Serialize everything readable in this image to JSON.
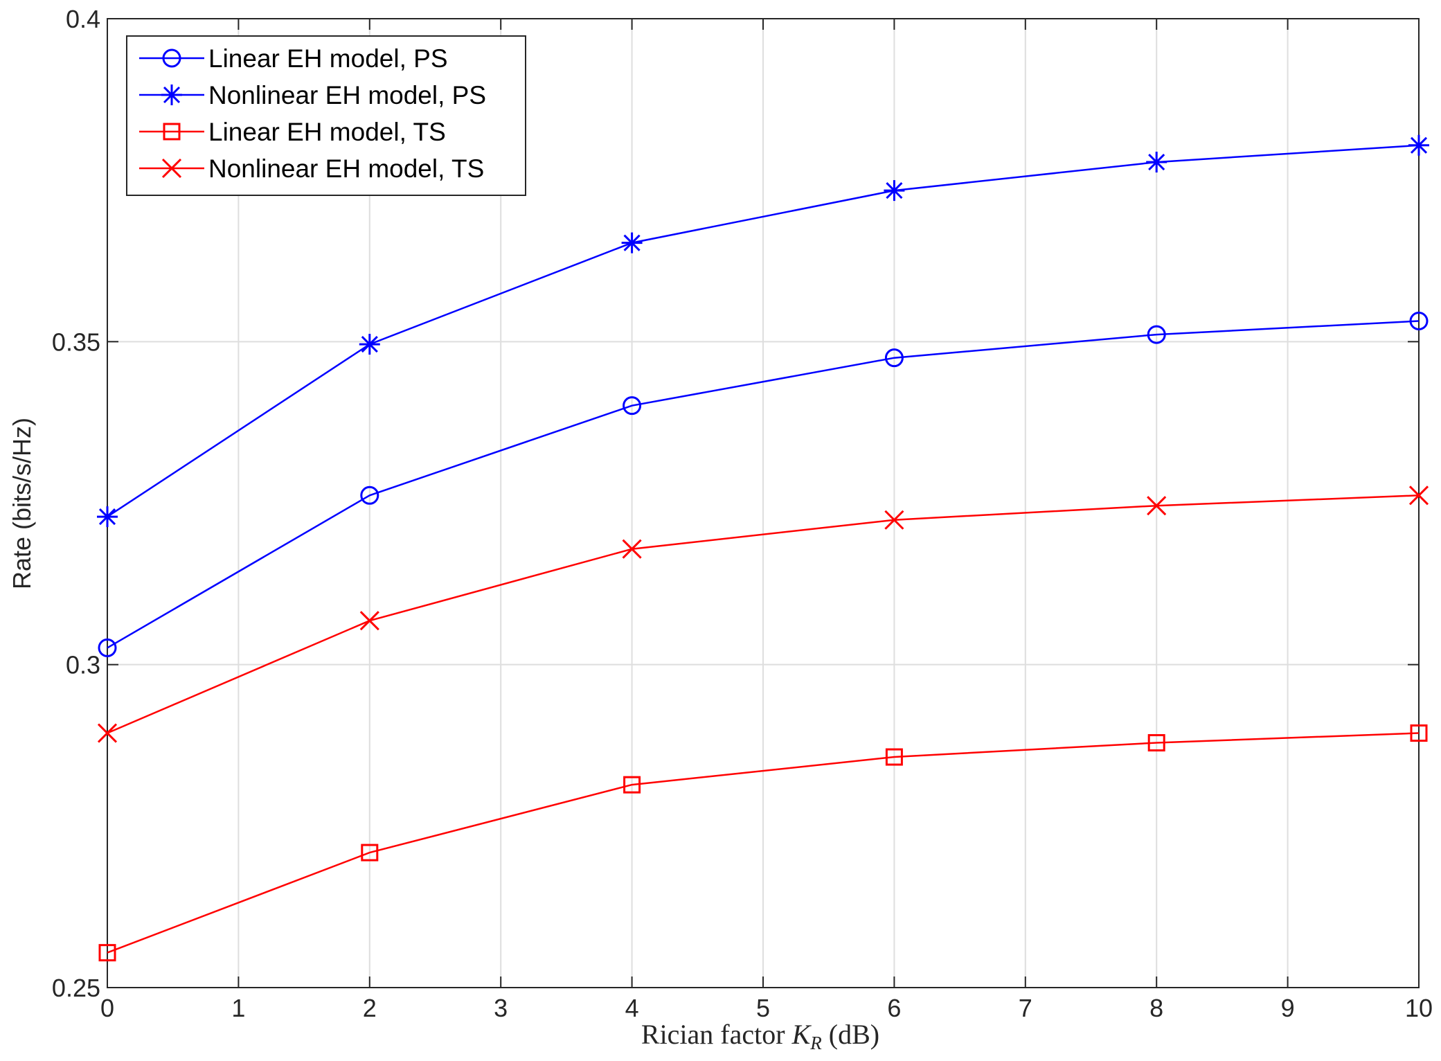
{
  "chart_data": {
    "type": "line",
    "xlabel": {
      "prefix": "Rician factor ",
      "symbol": "K",
      "subscript": "R",
      "suffix": " (dB)"
    },
    "ylabel": "Rate (bits/s/Hz)",
    "xlim": [
      0,
      10
    ],
    "ylim": [
      0.25,
      0.4
    ],
    "xticks": [
      "0",
      "1",
      "2",
      "3",
      "4",
      "5",
      "6",
      "7",
      "8",
      "9",
      "10"
    ],
    "yticks": [
      "0.25",
      "0.3",
      "0.35",
      "0.4"
    ],
    "grid": true,
    "legend_position": "top-left",
    "x": [
      0,
      2,
      4,
      6,
      8,
      10
    ],
    "series": [
      {
        "name": "Linear EH model, PS",
        "color": "#0000ff",
        "marker": "circle",
        "values": [
          0.3026,
          0.3262,
          0.3401,
          0.3475,
          0.3511,
          0.3532
        ]
      },
      {
        "name": "Nonlinear EH model, PS",
        "color": "#0000ff",
        "marker": "asterisk",
        "values": [
          0.3229,
          0.3496,
          0.3653,
          0.3734,
          0.3778,
          0.3804
        ]
      },
      {
        "name": "Linear EH model, TS",
        "color": "#ff0000",
        "marker": "square",
        "values": [
          0.2554,
          0.2709,
          0.2814,
          0.2857,
          0.2879,
          0.2894
        ]
      },
      {
        "name": "Nonlinear EH model, TS",
        "color": "#ff0000",
        "marker": "x",
        "values": [
          0.2894,
          0.3068,
          0.3179,
          0.3224,
          0.3246,
          0.3262
        ]
      }
    ]
  }
}
